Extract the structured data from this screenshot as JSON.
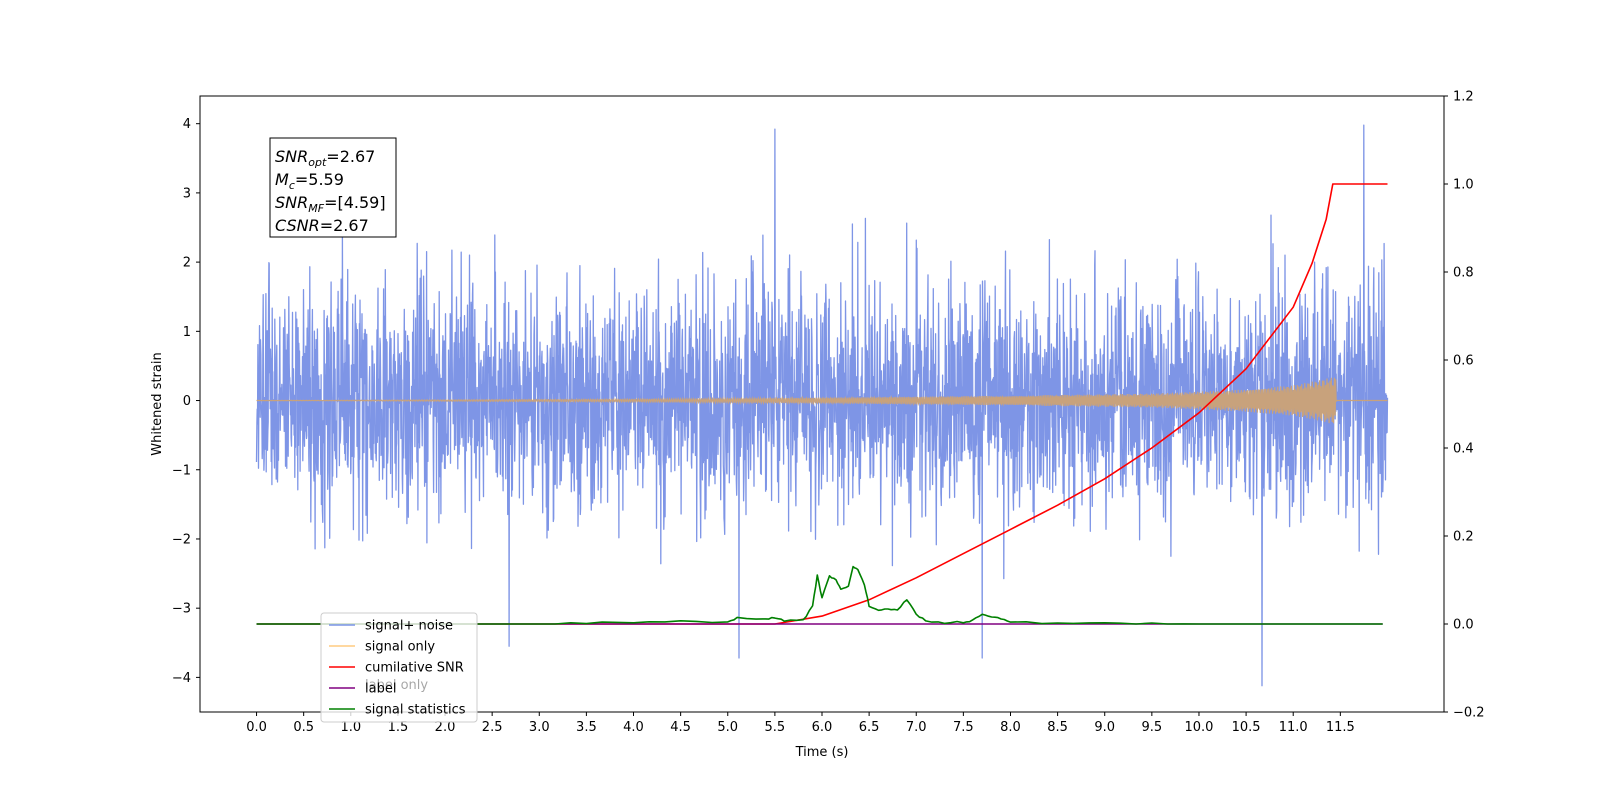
{
  "chart_data": {
    "type": "line",
    "xlabel": "Time (s)",
    "ylabel": "Whitened strain",
    "xlim": [
      -0.6,
      12.6
    ],
    "ylim": [
      -4.5,
      4.4
    ],
    "y2lim": [
      -0.2,
      1.2
    ],
    "x_ticks": [
      "0.0",
      "0.5",
      "1.0",
      "1.5",
      "2.0",
      "2.5",
      "3.0",
      "3.5",
      "4.0",
      "4.5",
      "5.0",
      "5.5",
      "6.0",
      "6.5",
      "7.0",
      "7.5",
      "8.0",
      "8.5",
      "9.0",
      "9.5",
      "10.0",
      "10.5",
      "11.0",
      "11.5"
    ],
    "y_ticks": [
      "4",
      "3",
      "2",
      "1",
      "0",
      "−1",
      "−2",
      "−3",
      "−4"
    ],
    "y2_ticks": [
      "1.2",
      "1.0",
      "0.8",
      "0.6",
      "0.4",
      "0.2",
      "0.0",
      "−0.2"
    ],
    "annotation": [
      {
        "sym": "SNR",
        "sub": "opt",
        "val": "=2.67"
      },
      {
        "sym": "M",
        "sub": "c",
        "val": "=5.59"
      },
      {
        "sym": "SNR",
        "sub": "MF",
        "val": "=[4.59]"
      },
      {
        "sym": "CSNR",
        "sub": "",
        "val": "=2.67"
      }
    ],
    "legend": {
      "placement": "lower-left",
      "entries": [
        {
          "label": "signal+ noise",
          "color": "#7b93e6"
        },
        {
          "label": "signal only",
          "color": "#ffcc80"
        },
        {
          "label": "cumilative SNR",
          "color": "#ff0000"
        },
        {
          "label": "label",
          "color": "#800080"
        },
        {
          "label": "signal statistics",
          "color": "#008000"
        }
      ],
      "hidden_label": "label only"
    },
    "series": [
      {
        "name": "signal+ noise",
        "axis": "left",
        "color": "#7b93e6",
        "x_range": [
          0.0,
          12.0
        ],
        "mean": 0.0,
        "std": 0.82,
        "notable_peaks": [
          [
            5.5,
            3.92
          ],
          [
            11.75,
            3.98
          ],
          [
            10.67,
            -4.12
          ],
          [
            2.68,
            -3.55
          ],
          [
            5.12,
            -3.72
          ],
          [
            7.7,
            -3.72
          ]
        ]
      },
      {
        "name": "signal only",
        "axis": "left",
        "color": "#ffcc80",
        "envelope": [
          [
            0.0,
            0.0
          ],
          [
            4.0,
            0.02
          ],
          [
            6.0,
            0.04
          ],
          [
            8.0,
            0.07
          ],
          [
            9.5,
            0.1
          ],
          [
            10.5,
            0.16
          ],
          [
            11.0,
            0.22
          ],
          [
            11.3,
            0.3
          ],
          [
            11.45,
            0.35
          ],
          [
            11.46,
            0.0
          ],
          [
            12.0,
            0.0
          ]
        ]
      },
      {
        "name": "cumilative SNR",
        "axis": "right",
        "color": "#ff0000",
        "points": [
          [
            0.0,
            0.0
          ],
          [
            5.5,
            0.0
          ],
          [
            6.0,
            0.018
          ],
          [
            6.5,
            0.055
          ],
          [
            7.0,
            0.105
          ],
          [
            7.5,
            0.16
          ],
          [
            8.0,
            0.215
          ],
          [
            8.5,
            0.27
          ],
          [
            9.0,
            0.33
          ],
          [
            9.5,
            0.4
          ],
          [
            10.0,
            0.48
          ],
          [
            10.5,
            0.58
          ],
          [
            11.0,
            0.72
          ],
          [
            11.2,
            0.82
          ],
          [
            11.35,
            0.92
          ],
          [
            11.42,
            1.0
          ],
          [
            12.0,
            1.0
          ]
        ]
      },
      {
        "name": "label",
        "axis": "right",
        "color": "#800080",
        "points": [
          [
            0.0,
            0.0
          ],
          [
            11.95,
            0.0
          ]
        ]
      },
      {
        "name": "signal statistics",
        "axis": "right",
        "color": "#008000",
        "points": [
          [
            0.0,
            0.0
          ],
          [
            3.0,
            0.0
          ],
          [
            3.5,
            0.002
          ],
          [
            4.0,
            0.004
          ],
          [
            4.5,
            0.007
          ],
          [
            5.0,
            0.004
          ],
          [
            5.1,
            0.015
          ],
          [
            5.4,
            0.012
          ],
          [
            5.5,
            0.014
          ],
          [
            5.6,
            0.008
          ],
          [
            5.8,
            0.008
          ],
          [
            5.9,
            0.04
          ],
          [
            5.95,
            0.11
          ],
          [
            6.0,
            0.06
          ],
          [
            6.08,
            0.108
          ],
          [
            6.15,
            0.1
          ],
          [
            6.2,
            0.08
          ],
          [
            6.28,
            0.085
          ],
          [
            6.33,
            0.13
          ],
          [
            6.38,
            0.125
          ],
          [
            6.45,
            0.09
          ],
          [
            6.5,
            0.04
          ],
          [
            6.6,
            0.03
          ],
          [
            6.7,
            0.035
          ],
          [
            6.8,
            0.032
          ],
          [
            6.9,
            0.055
          ],
          [
            7.0,
            0.022
          ],
          [
            7.1,
            0.008
          ],
          [
            7.3,
            0.003
          ],
          [
            7.5,
            0.004
          ],
          [
            7.6,
            0.008
          ],
          [
            7.7,
            0.022
          ],
          [
            7.8,
            0.016
          ],
          [
            7.9,
            0.012
          ],
          [
            8.0,
            0.005
          ],
          [
            8.5,
            0.001
          ],
          [
            9.0,
            0.001
          ],
          [
            9.5,
            0.001
          ],
          [
            10.0,
            0.0
          ],
          [
            11.95,
            0.0
          ]
        ]
      }
    ]
  }
}
